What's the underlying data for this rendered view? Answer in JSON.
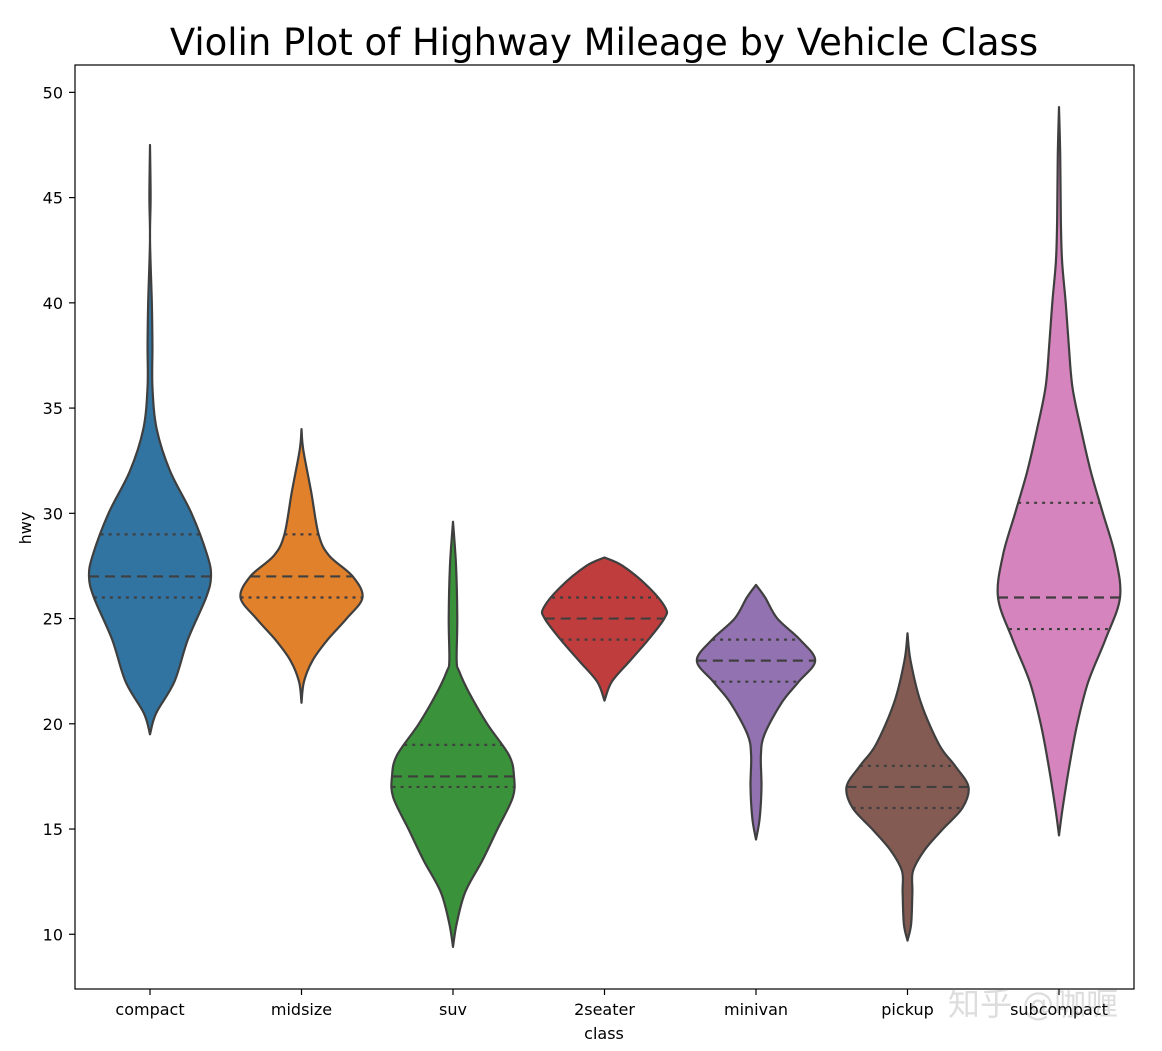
{
  "chart_data": {
    "type": "violin",
    "title": "Violin Plot of Highway Mileage by Vehicle Class",
    "xlabel": "class",
    "ylabel": "hwy",
    "ylim": [
      7.4,
      51.3
    ],
    "yticks": [
      10,
      15,
      20,
      25,
      30,
      35,
      40,
      45,
      50
    ],
    "grid": false,
    "inner": "quartile",
    "categories": [
      "compact",
      "midsize",
      "suv",
      "2seater",
      "minivan",
      "pickup",
      "subcompact"
    ],
    "series": [
      {
        "category": "compact",
        "color": "#3274a1",
        "profile": [
          [
            19.5,
            0.0
          ],
          [
            20.5,
            0.1
          ],
          [
            22,
            0.4
          ],
          [
            24,
            0.62
          ],
          [
            26,
            0.92
          ],
          [
            27,
            1.0
          ],
          [
            28,
            0.94
          ],
          [
            30,
            0.68
          ],
          [
            32,
            0.33
          ],
          [
            34,
            0.11
          ],
          [
            36,
            0.04
          ],
          [
            38,
            0.04
          ],
          [
            40,
            0.03
          ],
          [
            43,
            0.0
          ],
          [
            45,
            0.01
          ],
          [
            47.5,
            0.0
          ]
        ],
        "q1": 26,
        "median": 27,
        "q3": 29
      },
      {
        "category": "midsize",
        "color": "#e1812c",
        "profile": [
          [
            21,
            0.0
          ],
          [
            22,
            0.04
          ],
          [
            23,
            0.18
          ],
          [
            24,
            0.43
          ],
          [
            25,
            0.74
          ],
          [
            26,
            1.0
          ],
          [
            27,
            0.84
          ],
          [
            28,
            0.45
          ],
          [
            29,
            0.28
          ],
          [
            31,
            0.16
          ],
          [
            33,
            0.03
          ],
          [
            34,
            0.0
          ]
        ],
        "q1": 26,
        "median": 27,
        "q3": 29
      },
      {
        "category": "suv",
        "color": "#3a923a",
        "profile": [
          [
            9.4,
            0.0
          ],
          [
            10.5,
            0.06
          ],
          [
            12,
            0.2
          ],
          [
            13.5,
            0.48
          ],
          [
            15,
            0.73
          ],
          [
            16.5,
            0.98
          ],
          [
            17.5,
            1.0
          ],
          [
            18.5,
            0.92
          ],
          [
            20,
            0.56
          ],
          [
            21.5,
            0.26
          ],
          [
            22.5,
            0.1
          ],
          [
            23,
            0.06
          ],
          [
            25,
            0.07
          ],
          [
            27.5,
            0.05
          ],
          [
            29.6,
            0.0
          ]
        ],
        "q1": 17,
        "median": 17.5,
        "q3": 19
      },
      {
        "category": "2seater",
        "color": "#c03d3e",
        "profile": [
          [
            21.1,
            0.0
          ],
          [
            22,
            0.12
          ],
          [
            23,
            0.42
          ],
          [
            24,
            0.72
          ],
          [
            25,
            0.98
          ],
          [
            25.5,
            1.0
          ],
          [
            26.5,
            0.72
          ],
          [
            27.5,
            0.3
          ],
          [
            27.9,
            0.0
          ]
        ],
        "q1": 24,
        "median": 25,
        "q3": 26
      },
      {
        "category": "minivan",
        "color": "#9372b2",
        "profile": [
          [
            14.5,
            0.0
          ],
          [
            15.5,
            0.06
          ],
          [
            17,
            0.09
          ],
          [
            18.5,
            0.08
          ],
          [
            19.5,
            0.14
          ],
          [
            21,
            0.42
          ],
          [
            22,
            0.7
          ],
          [
            23,
            0.97
          ],
          [
            24,
            0.72
          ],
          [
            25,
            0.35
          ],
          [
            26,
            0.15
          ],
          [
            26.6,
            0.0
          ]
        ],
        "q1": 22,
        "median": 23,
        "q3": 24
      },
      {
        "category": "pickup",
        "color": "#845b53",
        "profile": [
          [
            9.7,
            0.0
          ],
          [
            10.5,
            0.06
          ],
          [
            12,
            0.08
          ],
          [
            13,
            0.09
          ],
          [
            14,
            0.28
          ],
          [
            15,
            0.58
          ],
          [
            16,
            0.9
          ],
          [
            17,
            1.0
          ],
          [
            18,
            0.78
          ],
          [
            19,
            0.52
          ],
          [
            21,
            0.22
          ],
          [
            23,
            0.05
          ],
          [
            24.3,
            0.0
          ]
        ],
        "q1": 16,
        "median": 17,
        "q3": 18
      },
      {
        "category": "subcompact",
        "color": "#d684bd",
        "profile": [
          [
            14.7,
            0.0
          ],
          [
            16,
            0.06
          ],
          [
            18,
            0.17
          ],
          [
            20,
            0.3
          ],
          [
            22,
            0.48
          ],
          [
            24,
            0.76
          ],
          [
            26,
            1.0
          ],
          [
            28,
            0.92
          ],
          [
            30,
            0.72
          ],
          [
            32,
            0.52
          ],
          [
            34,
            0.36
          ],
          [
            36,
            0.22
          ],
          [
            38,
            0.16
          ],
          [
            40,
            0.11
          ],
          [
            42,
            0.05
          ],
          [
            44,
            0.03
          ],
          [
            47,
            0.02
          ],
          [
            49.3,
            0.0
          ]
        ],
        "q1": 24.5,
        "median": 26,
        "q3": 30.5
      }
    ]
  },
  "watermark": "知乎 @咖喱"
}
